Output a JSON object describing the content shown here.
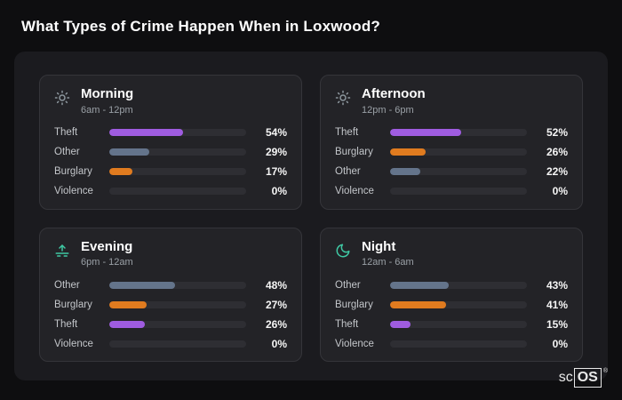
{
  "page": {
    "title": "What Types of Crime Happen When in Loxwood?"
  },
  "colors": {
    "Theft": "#9f5ce0",
    "Other": "#64748b",
    "Burglary": "#e07b1f",
    "Violence": "#64748b",
    "track": "#2e2e33",
    "accent_teal": "#3fc9a4",
    "panel_bg": "#232327",
    "board_bg": "#1b1b1f",
    "page_bg": "#0e0e10"
  },
  "chart_data": [
    {
      "type": "bar",
      "title": "Morning",
      "subtitle": "6am - 12pm",
      "icon": "sun-icon",
      "categories": [
        "Theft",
        "Other",
        "Burglary",
        "Violence"
      ],
      "values": [
        54,
        29,
        17,
        0
      ],
      "labels": [
        "54%",
        "29%",
        "17%",
        "0%"
      ],
      "xlim": [
        0,
        100
      ]
    },
    {
      "type": "bar",
      "title": "Afternoon",
      "subtitle": "12pm - 6pm",
      "icon": "sun-icon",
      "categories": [
        "Theft",
        "Burglary",
        "Other",
        "Violence"
      ],
      "values": [
        52,
        26,
        22,
        0
      ],
      "labels": [
        "52%",
        "26%",
        "22%",
        "0%"
      ],
      "xlim": [
        0,
        100
      ]
    },
    {
      "type": "bar",
      "title": "Evening",
      "subtitle": "6pm - 12am",
      "icon": "sunset-icon",
      "categories": [
        "Other",
        "Burglary",
        "Theft",
        "Violence"
      ],
      "values": [
        48,
        27,
        26,
        0
      ],
      "labels": [
        "48%",
        "27%",
        "26%",
        "0%"
      ],
      "xlim": [
        0,
        100
      ]
    },
    {
      "type": "bar",
      "title": "Night",
      "subtitle": "12am - 6am",
      "icon": "moon-icon",
      "categories": [
        "Other",
        "Burglary",
        "Theft",
        "Violence"
      ],
      "values": [
        43,
        41,
        15,
        0
      ],
      "labels": [
        "43%",
        "41%",
        "15%",
        "0%"
      ],
      "xlim": [
        0,
        100
      ]
    }
  ],
  "brand": {
    "prefix": "sc",
    "suffix": "OS",
    "registered": "®"
  }
}
